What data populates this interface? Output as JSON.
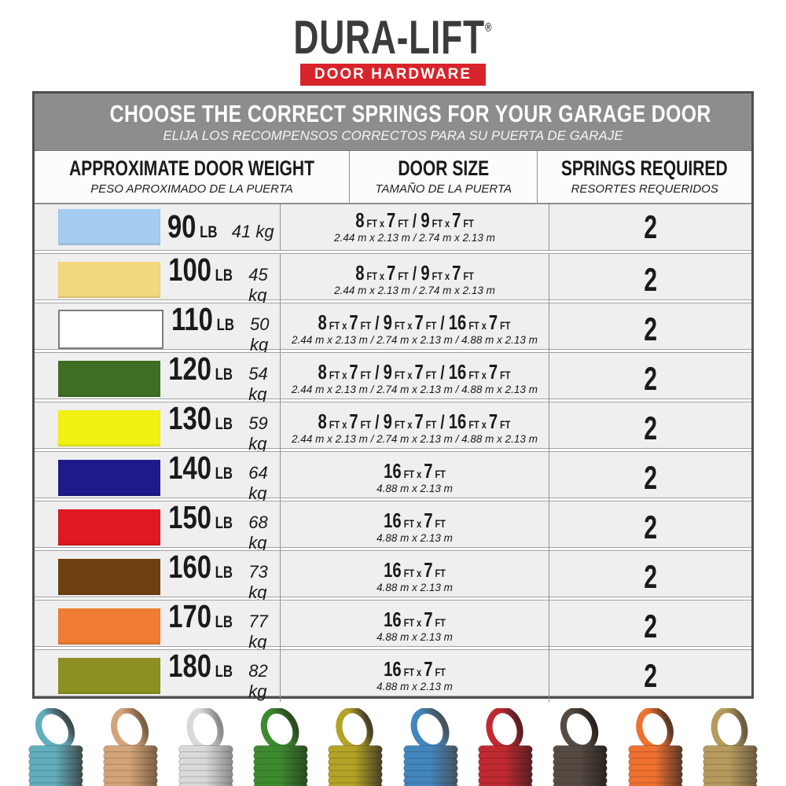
{
  "logo": {
    "brand": "DURA-LIFT",
    "reg": "®",
    "tagline": "DOOR HARDWARE",
    "brand_color": "#3b3b3d",
    "tagline_bg": "#d8232a",
    "tagline_color": "#ffffff"
  },
  "banner": {
    "title": "CHOOSE THE CORRECT SPRINGS FOR YOUR GARAGE DOOR",
    "subtitle": "ELIJA LOS RECOMPENSOS CORRECTOS PARA SU PUERTA DE GARAJE",
    "bg": "#8d8d8d"
  },
  "columns": [
    {
      "title": "APPROXIMATE DOOR WEIGHT",
      "subtitle": "PESO APROXIMADO DE LA PUERTA"
    },
    {
      "title": "DOOR SIZE",
      "subtitle": "TAMAÑO DE LA PUERTA"
    },
    {
      "title": "SPRINGS REQUIRED",
      "subtitle": "RESORTES REQUERIDOS"
    }
  ],
  "units": {
    "weight": "LB",
    "kg_suffix": "kg"
  },
  "rows": [
    {
      "color_name": "light-blue",
      "color": "#a6ccf1",
      "weight_lb": "90",
      "weight_kg": "41",
      "size_ft": "8FT x 7FT / 9FT x 7FT",
      "size_m": "2.44 m x 2.13 m / 2.74 m x 2.13 m",
      "springs_required": "2"
    },
    {
      "color_name": "tan",
      "color": "#f3d87d",
      "weight_lb": "100",
      "weight_kg": "45",
      "size_ft": "8FT x 7FT / 9FT x 7FT",
      "size_m": "2.44 m x 2.13 m / 2.74 m x 2.13 m",
      "springs_required": "2"
    },
    {
      "color_name": "white",
      "color": "#ffffff",
      "weight_lb": "110",
      "weight_kg": "50",
      "size_ft": "8FT x 7FT / 9FT x 7FT / 16FT x 7FT",
      "size_m": "2.44 m x 2.13 m / 2.74 m x 2.13 m / 4.88 m x 2.13 m",
      "springs_required": "2"
    },
    {
      "color_name": "green",
      "color": "#3f6e23",
      "weight_lb": "120",
      "weight_kg": "54",
      "size_ft": "8FT x 7FT / 9FT x 7FT / 16FT x 7FT",
      "size_m": "2.44 m x 2.13 m / 2.74 m x 2.13 m / 4.88 m x 2.13 m",
      "springs_required": "2"
    },
    {
      "color_name": "yellow",
      "color": "#f2f211",
      "weight_lb": "130",
      "weight_kg": "59",
      "size_ft": "8FT x 7FT / 9FT x 7FT / 16FT x 7FT",
      "size_m": "2.44 m x 2.13 m / 2.74 m x 2.13 m / 4.88 m x 2.13 m",
      "springs_required": "2"
    },
    {
      "color_name": "navy",
      "color": "#1f1a8c",
      "weight_lb": "140",
      "weight_kg": "64",
      "size_ft": "16FT x 7FT",
      "size_m": "4.88 m x 2.13 m",
      "springs_required": "2"
    },
    {
      "color_name": "red",
      "color": "#e01820",
      "weight_lb": "150",
      "weight_kg": "68",
      "size_ft": "16FT x 7FT",
      "size_m": "4.88 m x 2.13 m",
      "springs_required": "2"
    },
    {
      "color_name": "brown",
      "color": "#6e4112",
      "weight_lb": "160",
      "weight_kg": "73",
      "size_ft": "16FT x 7FT",
      "size_m": "4.88 m x 2.13 m",
      "springs_required": "2"
    },
    {
      "color_name": "orange",
      "color": "#f07d33",
      "weight_lb": "170",
      "weight_kg": "77",
      "size_ft": "16FT x 7FT",
      "size_m": "4.88 m x 2.13 m",
      "springs_required": "2"
    },
    {
      "color_name": "olive",
      "color": "#8c9023",
      "weight_lb": "180",
      "weight_kg": "82",
      "size_ft": "16FT x 7FT",
      "size_m": "4.88 m x 2.13 m",
      "springs_required": "2"
    }
  ],
  "springs_photos": [
    {
      "name": "teal",
      "main": "#63aebe",
      "dark": "#3f4a4c"
    },
    {
      "name": "copper",
      "main": "#d3a478",
      "dark": "#7c5f43"
    },
    {
      "name": "silver",
      "main": "#d9d9d9",
      "dark": "#8a8a8a"
    },
    {
      "name": "green",
      "main": "#3d8a2e",
      "dark": "#2a4a20"
    },
    {
      "name": "yellow",
      "main": "#b3a326",
      "dark": "#463f27"
    },
    {
      "name": "blue",
      "main": "#4286bd",
      "dark": "#46545c"
    },
    {
      "name": "red",
      "main": "#bf2a30",
      "dark": "#591f22"
    },
    {
      "name": "charcoal",
      "main": "#564b42",
      "dark": "#2b2420"
    },
    {
      "name": "orange",
      "main": "#ef7130",
      "dark": "#593827"
    },
    {
      "name": "gold",
      "main": "#b69a5e",
      "dark": "#6c5c40"
    }
  ]
}
